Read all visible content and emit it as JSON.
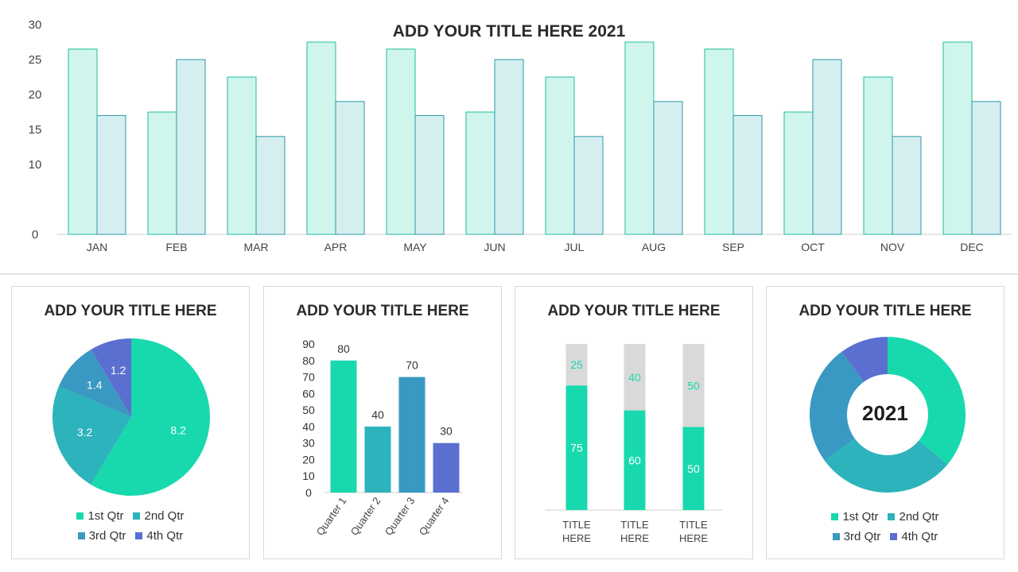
{
  "colors": {
    "top_bar_a_fill": "#cff5ec",
    "top_bar_a_stroke": "#1fbf9e",
    "top_bar_b_fill": "#d5eff1",
    "top_bar_b_stroke": "#2a9aa4",
    "q1": "#18d9ad",
    "q2": "#2cb3bb",
    "q3": "#3999c2",
    "q4": "#5a6fd0",
    "grey": "#d9d9d9"
  },
  "main": {
    "title": "ADD YOUR TITLE HERE 2021"
  },
  "cards": [
    {
      "title": "ADD YOUR TITLE HERE"
    },
    {
      "title": "ADD YOUR TITLE HERE"
    },
    {
      "title": "ADD YOUR TITLE HERE"
    },
    {
      "title": "ADD YOUR TITLE HERE"
    }
  ],
  "legend": [
    "1st Qtr",
    "2nd Qtr",
    "3rd Qtr",
    "4th Qtr"
  ],
  "donut_center": "2021",
  "chart_data": [
    {
      "type": "bar",
      "title": "ADD YOUR TITLE HERE 2021",
      "categories": [
        "JAN",
        "FEB",
        "MAR",
        "APR",
        "MAY",
        "JUN",
        "JUL",
        "AUG",
        "SEP",
        "OCT",
        "NOV",
        "DEC"
      ],
      "series": [
        {
          "values": [
            26.5,
            17.5,
            22.5,
            27.5,
            26.5,
            17.5,
            22.5,
            27.5,
            26.5,
            17.5,
            22.5,
            27.5
          ]
        },
        {
          "values": [
            17,
            25,
            14,
            19,
            17,
            25,
            14,
            19,
            17,
            25,
            14,
            19
          ]
        }
      ],
      "ylim": [
        0,
        30
      ],
      "yticks": [
        "0",
        "10",
        "15",
        "20",
        "25",
        "30"
      ],
      "grid": false
    },
    {
      "type": "pie",
      "title": "ADD YOUR TITLE HERE",
      "categories": [
        "1st Qtr",
        "2nd Qtr",
        "3rd Qtr",
        "4th Qtr"
      ],
      "values": [
        8.2,
        3.2,
        1.4,
        1.2
      ],
      "labels": [
        "8.2",
        "3.2",
        "1.4",
        "1.2"
      ],
      "legend": "bottom"
    },
    {
      "type": "bar",
      "title": "ADD YOUR TITLE HERE",
      "categories": [
        "Quarter 1",
        "Quarter 2",
        "Quarter 3",
        "Quarter 4"
      ],
      "values": [
        80,
        40,
        70,
        30
      ],
      "labels": [
        "80",
        "40",
        "70",
        "30"
      ],
      "ylim": [
        0,
        90
      ],
      "yticks": [
        "0",
        "10",
        "20",
        "30",
        "40",
        "50",
        "60",
        "70",
        "80",
        "90"
      ]
    },
    {
      "type": "bar",
      "stacked": true,
      "title": "ADD YOUR TITLE HERE",
      "categories": [
        "TITLE HERE",
        "TITLE HERE",
        "TITLE HERE"
      ],
      "series": [
        {
          "values": [
            75,
            60,
            50
          ],
          "labels": [
            "75",
            "60",
            "50"
          ]
        },
        {
          "values": [
            25,
            40,
            50
          ],
          "labels": [
            "25",
            "40",
            "50"
          ]
        }
      ]
    },
    {
      "type": "pie",
      "donut": true,
      "title": "ADD YOUR TITLE HERE",
      "categories": [
        "1st Qtr",
        "2nd Qtr",
        "3rd Qtr",
        "4th Qtr"
      ],
      "values": [
        36,
        29,
        25,
        10
      ],
      "center_label": "2021",
      "legend": "bottom"
    }
  ]
}
